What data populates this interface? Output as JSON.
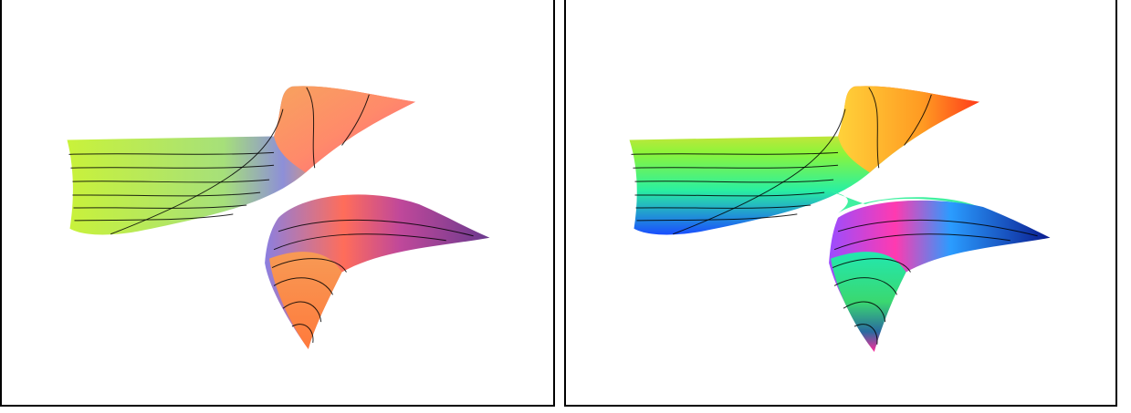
{
  "panels": [
    {
      "id": "left",
      "colormap": "orange-purple-shaded"
    },
    {
      "id": "right",
      "colormap": "hsv-rainbow"
    }
  ],
  "colors": {
    "frame": "#000000",
    "background": "#ffffff"
  }
}
